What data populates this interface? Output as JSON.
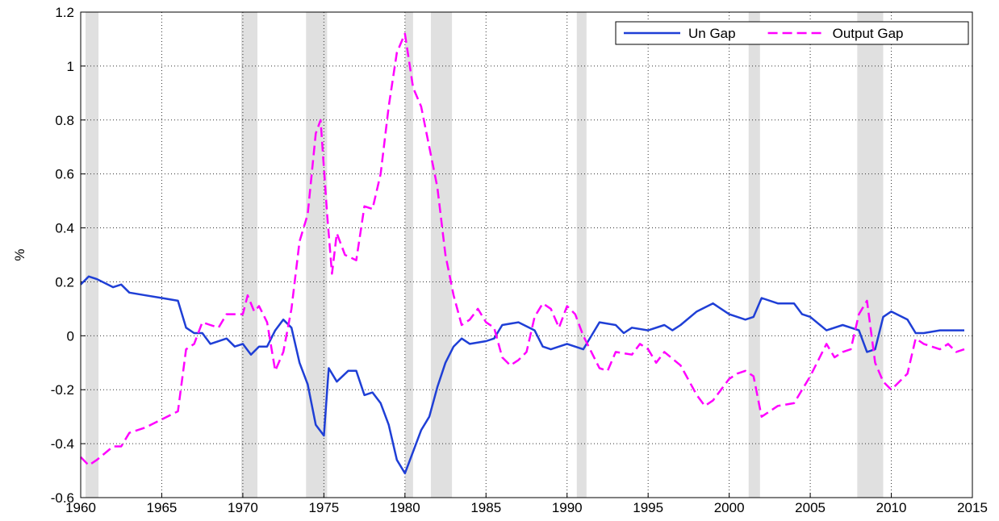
{
  "chart_data": {
    "type": "line",
    "ylabel": "%",
    "xlim": [
      1960,
      2015
    ],
    "xticks": [
      1960,
      1965,
      1970,
      1975,
      1980,
      1985,
      1990,
      1995,
      2000,
      2005,
      2010,
      2015
    ],
    "ylim": [
      -0.6,
      1.2
    ],
    "yticks": [
      -0.6,
      -0.4,
      -0.2,
      0,
      0.2,
      0.4,
      0.6,
      0.8,
      1,
      1.2
    ],
    "grid": true,
    "legend": "upper right",
    "shaded_periods": [
      [
        1960.3,
        1961.1
      ],
      [
        1969.9,
        1970.9
      ],
      [
        1973.9,
        1975.2
      ],
      [
        1980.0,
        1980.5
      ],
      [
        1981.6,
        1982.9
      ],
      [
        1990.6,
        1991.2
      ],
      [
        2001.2,
        2001.9
      ],
      [
        2007.9,
        2009.5
      ]
    ],
    "shade_color": "#e0e0e0",
    "series": [
      {
        "name": "Un Gap",
        "color": "#1f3fd6",
        "dash": "none",
        "x": [
          1960,
          1960.5,
          1961,
          1962,
          1962.5,
          1963,
          1964,
          1965,
          1966,
          1966.5,
          1967,
          1967.5,
          1968,
          1969,
          1969.5,
          1970,
          1970.5,
          1971,
          1971.5,
          1972,
          1972.5,
          1973,
          1973.5,
          1974,
          1974.5,
          1975,
          1975.3,
          1975.8,
          1976.5,
          1977,
          1977.5,
          1978,
          1978.5,
          1979,
          1979.5,
          1980,
          1980.5,
          1981,
          1981.5,
          1982,
          1982.5,
          1983,
          1983.5,
          1984,
          1985,
          1985.5,
          1986,
          1987,
          1988,
          1988.5,
          1989,
          1990,
          1991,
          1992,
          1993,
          1993.5,
          1994,
          1995,
          1996,
          1996.5,
          1997,
          1998,
          1999,
          2000,
          2001,
          2001.5,
          2002,
          2003,
          2004,
          2004.5,
          2005,
          2006,
          2007,
          2008,
          2008.5,
          2009,
          2009.5,
          2010,
          2011,
          2011.5,
          2012,
          2013,
          2014,
          2014.5
        ],
        "values": [
          0.19,
          0.22,
          0.21,
          0.18,
          0.19,
          0.16,
          0.15,
          0.14,
          0.13,
          0.03,
          0.01,
          0.01,
          -0.03,
          -0.01,
          -0.04,
          -0.03,
          -0.07,
          -0.04,
          -0.04,
          0.02,
          0.06,
          0.03,
          -0.1,
          -0.18,
          -0.33,
          -0.37,
          -0.12,
          -0.17,
          -0.13,
          -0.13,
          -0.22,
          -0.21,
          -0.25,
          -0.33,
          -0.46,
          -0.51,
          -0.43,
          -0.35,
          -0.3,
          -0.19,
          -0.1,
          -0.04,
          -0.01,
          -0.03,
          -0.02,
          -0.01,
          0.04,
          0.05,
          0.02,
          -0.04,
          -0.05,
          -0.03,
          -0.05,
          0.05,
          0.04,
          0.01,
          0.03,
          0.02,
          0.04,
          0.02,
          0.04,
          0.09,
          0.12,
          0.08,
          0.06,
          0.07,
          0.14,
          0.12,
          0.12,
          0.08,
          0.07,
          0.02,
          0.04,
          0.02,
          -0.06,
          -0.05,
          0.07,
          0.09,
          0.06,
          0.01,
          0.01,
          0.02,
          0.02,
          0.02
        ]
      },
      {
        "name": "Output Gap",
        "color": "#ff00ff",
        "dash": "12 6",
        "x": [
          1960,
          1960.5,
          1961,
          1962,
          1962.5,
          1963,
          1964,
          1965,
          1966,
          1966.5,
          1967,
          1967.5,
          1968,
          1968.5,
          1969,
          1970,
          1970.3,
          1970.7,
          1971,
          1971.5,
          1972,
          1972.5,
          1973,
          1973.5,
          1974,
          1974.5,
          1974.8,
          1975.2,
          1975.5,
          1975.8,
          1976.3,
          1977,
          1977.5,
          1978,
          1978.5,
          1979,
          1979.5,
          1980,
          1980.5,
          1981,
          1981.5,
          1982,
          1982.5,
          1983,
          1983.5,
          1984,
          1984.5,
          1985,
          1985.5,
          1986,
          1986.5,
          1987,
          1987.5,
          1988,
          1988.5,
          1989,
          1989.5,
          1990,
          1990.5,
          1991,
          1992,
          1992.5,
          1993,
          1994,
          1994.5,
          1995,
          1995.5,
          1996,
          1997,
          1998,
          1998.5,
          1999,
          2000,
          2000.5,
          2001,
          2001.5,
          2002,
          2002.5,
          2003,
          2004,
          2005,
          2006,
          2006.5,
          2007,
          2007.5,
          2008,
          2008.5,
          2009,
          2009.5,
          2010,
          2011,
          2011.5,
          2012,
          2013,
          2013.5,
          2014,
          2014.5
        ],
        "values": [
          -0.45,
          -0.48,
          -0.46,
          -0.41,
          -0.41,
          -0.36,
          -0.34,
          -0.31,
          -0.28,
          -0.05,
          -0.03,
          0.05,
          0.04,
          0.03,
          0.08,
          0.08,
          0.15,
          0.09,
          0.11,
          0.05,
          -0.13,
          -0.06,
          0.1,
          0.35,
          0.45,
          0.75,
          0.8,
          0.45,
          0.23,
          0.38,
          0.3,
          0.28,
          0.48,
          0.47,
          0.6,
          0.85,
          1.05,
          1.12,
          0.92,
          0.85,
          0.7,
          0.55,
          0.3,
          0.15,
          0.04,
          0.06,
          0.1,
          0.05,
          0.03,
          -0.08,
          -0.11,
          -0.09,
          -0.06,
          0.07,
          0.12,
          0.1,
          0.03,
          0.11,
          0.08,
          0.0,
          -0.12,
          -0.13,
          -0.06,
          -0.07,
          -0.03,
          -0.05,
          -0.1,
          -0.06,
          -0.11,
          -0.22,
          -0.26,
          -0.24,
          -0.16,
          -0.14,
          -0.13,
          -0.15,
          -0.3,
          -0.28,
          -0.26,
          -0.25,
          -0.15,
          -0.03,
          -0.08,
          -0.06,
          -0.05,
          0.08,
          0.13,
          -0.1,
          -0.17,
          -0.2,
          -0.14,
          -0.01,
          -0.03,
          -0.05,
          -0.03,
          -0.06,
          -0.05
        ]
      }
    ]
  }
}
